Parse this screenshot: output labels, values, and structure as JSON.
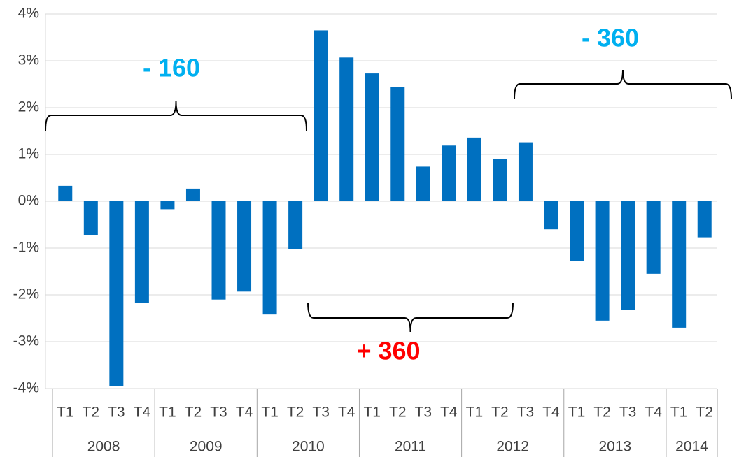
{
  "chart_data": {
    "type": "bar",
    "color": "#0070c0",
    "grid": true,
    "groups": [
      {
        "label": "2008",
        "categories": [
          "T1",
          "T2",
          "T3",
          "T4"
        ]
      },
      {
        "label": "2009",
        "categories": [
          "T1",
          "T2",
          "T3",
          "T4"
        ]
      },
      {
        "label": "2010",
        "categories": [
          "T1",
          "T2",
          "T3",
          "T4"
        ]
      },
      {
        "label": "2011",
        "categories": [
          "T1",
          "T2",
          "T3",
          "T4"
        ]
      },
      {
        "label": "2012",
        "categories": [
          "T1",
          "T2",
          "T3",
          "T4"
        ]
      },
      {
        "label": "2013",
        "categories": [
          "T1",
          "T2",
          "T3",
          "T4"
        ]
      },
      {
        "label": "2014",
        "categories": [
          "T1",
          "T2"
        ]
      }
    ],
    "values": [
      0.33,
      -0.73,
      -3.95,
      -2.17,
      -0.17,
      0.27,
      -2.1,
      -1.93,
      -2.42,
      -1.02,
      3.65,
      3.07,
      2.73,
      2.44,
      0.74,
      1.19,
      1.36,
      0.9,
      1.26,
      -0.6,
      -1.28,
      -2.55,
      -2.32,
      -1.55,
      -2.7,
      -0.77
    ],
    "ylim": [
      -4,
      4
    ],
    "yticks": [
      {
        "value": -4,
        "label": "-4%"
      },
      {
        "value": -3,
        "label": "-3%"
      },
      {
        "value": -2,
        "label": "-2%"
      },
      {
        "value": -1,
        "label": "-1%"
      },
      {
        "value": 0,
        "label": "0%"
      },
      {
        "value": 1,
        "label": "1%"
      },
      {
        "value": 2,
        "label": "2%"
      },
      {
        "value": 3,
        "label": "3%"
      },
      {
        "value": 4,
        "label": "4%"
      }
    ],
    "annotations": [
      {
        "text": "- 160",
        "color": "#00b0f0"
      },
      {
        "text": "+ 360",
        "color": "#ff0000"
      },
      {
        "text": "- 360",
        "color": "#00b0f0"
      }
    ]
  }
}
